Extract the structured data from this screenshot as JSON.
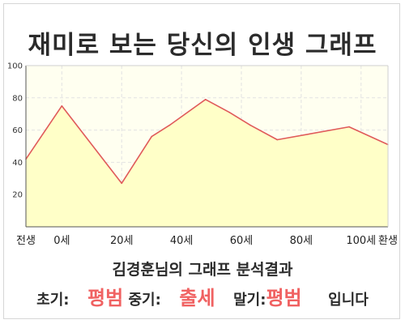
{
  "title": "재미로 보는 당신의 인생 그래프",
  "caption": "김경훈님의 그래프 분석결과",
  "result": {
    "early_label": "초기:",
    "early_value": "평범",
    "mid_label": "중기:",
    "mid_value": "출세",
    "late_label": "말기:",
    "late_value": "평범",
    "suffix": "입니다"
  },
  "colors": {
    "line": "#e05a5a",
    "fill": "#ffffc8",
    "plot_bg": "#fffff0",
    "grid": "#e2e2e2",
    "highlight": "#f06262"
  },
  "chart_data": {
    "type": "area",
    "title": "재미로 보는 당신의 인생 그래프",
    "xlabel": "",
    "ylabel": "",
    "ylim": [
      0,
      100
    ],
    "yticks": [
      20,
      40,
      60,
      80,
      100
    ],
    "xlim": [
      -12,
      109
    ],
    "grid": true,
    "x": [
      -12,
      0,
      20,
      30,
      36,
      48,
      56,
      63,
      72,
      96,
      109
    ],
    "values": [
      42,
      75,
      27,
      56,
      63,
      79,
      71,
      63,
      54,
      62,
      51
    ],
    "xtick_labels": [
      {
        "x": -12,
        "label": "전생"
      },
      {
        "x": 0,
        "label": "0세"
      },
      {
        "x": 20,
        "label": "20세"
      },
      {
        "x": 40,
        "label": "40세"
      },
      {
        "x": 60,
        "label": "60세"
      },
      {
        "x": 80,
        "label": "80세"
      },
      {
        "x": 100,
        "label": "100세"
      },
      {
        "x": 109,
        "label": "환생"
      }
    ]
  }
}
